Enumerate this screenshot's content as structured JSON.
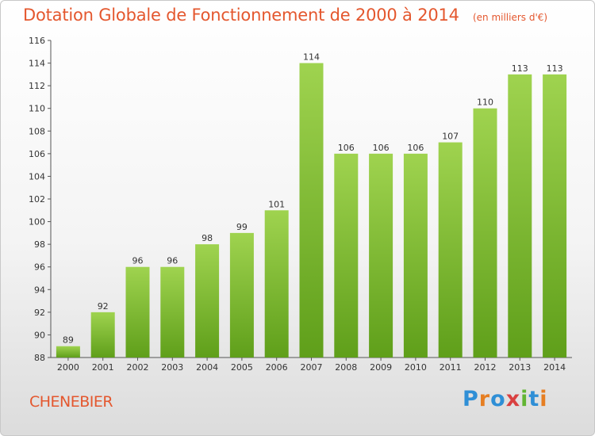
{
  "title": "Dotation Globale de Fonctionnement de 2000 à 2014",
  "subtitle": "(en milliers d'€)",
  "commune": "CHENEBIER",
  "brand": {
    "letters": [
      "P",
      "r",
      "o",
      "x",
      "i",
      "t",
      "i"
    ],
    "colors": [
      "#2f8fd6",
      "#e67e22",
      "#2f8fd6",
      "#d94040",
      "#62b533",
      "#2f8fd6",
      "#e67e22"
    ]
  },
  "colors": {
    "bar_top": "#9fd34f",
    "bar_bottom": "#5f9f1a",
    "title": "#e4572e"
  },
  "chart_data": {
    "type": "bar",
    "categories": [
      "2000",
      "2001",
      "2002",
      "2003",
      "2004",
      "2005",
      "2006",
      "2007",
      "2008",
      "2009",
      "2010",
      "2011",
      "2012",
      "2013",
      "2014"
    ],
    "values": [
      89,
      92,
      96,
      96,
      98,
      99,
      101,
      114,
      106,
      106,
      106,
      107,
      110,
      113,
      113
    ],
    "value_labels": [
      "89",
      "92",
      "96",
      "96",
      "98",
      "99",
      "101",
      "114",
      "106",
      "106",
      "106",
      "107",
      "110",
      "113",
      "113"
    ],
    "yticks": [
      88,
      90,
      92,
      94,
      96,
      98,
      100,
      102,
      104,
      106,
      108,
      110,
      112,
      114,
      116
    ],
    "ylim": [
      88,
      116
    ],
    "grid": false,
    "xlabel": "",
    "ylabel": ""
  }
}
